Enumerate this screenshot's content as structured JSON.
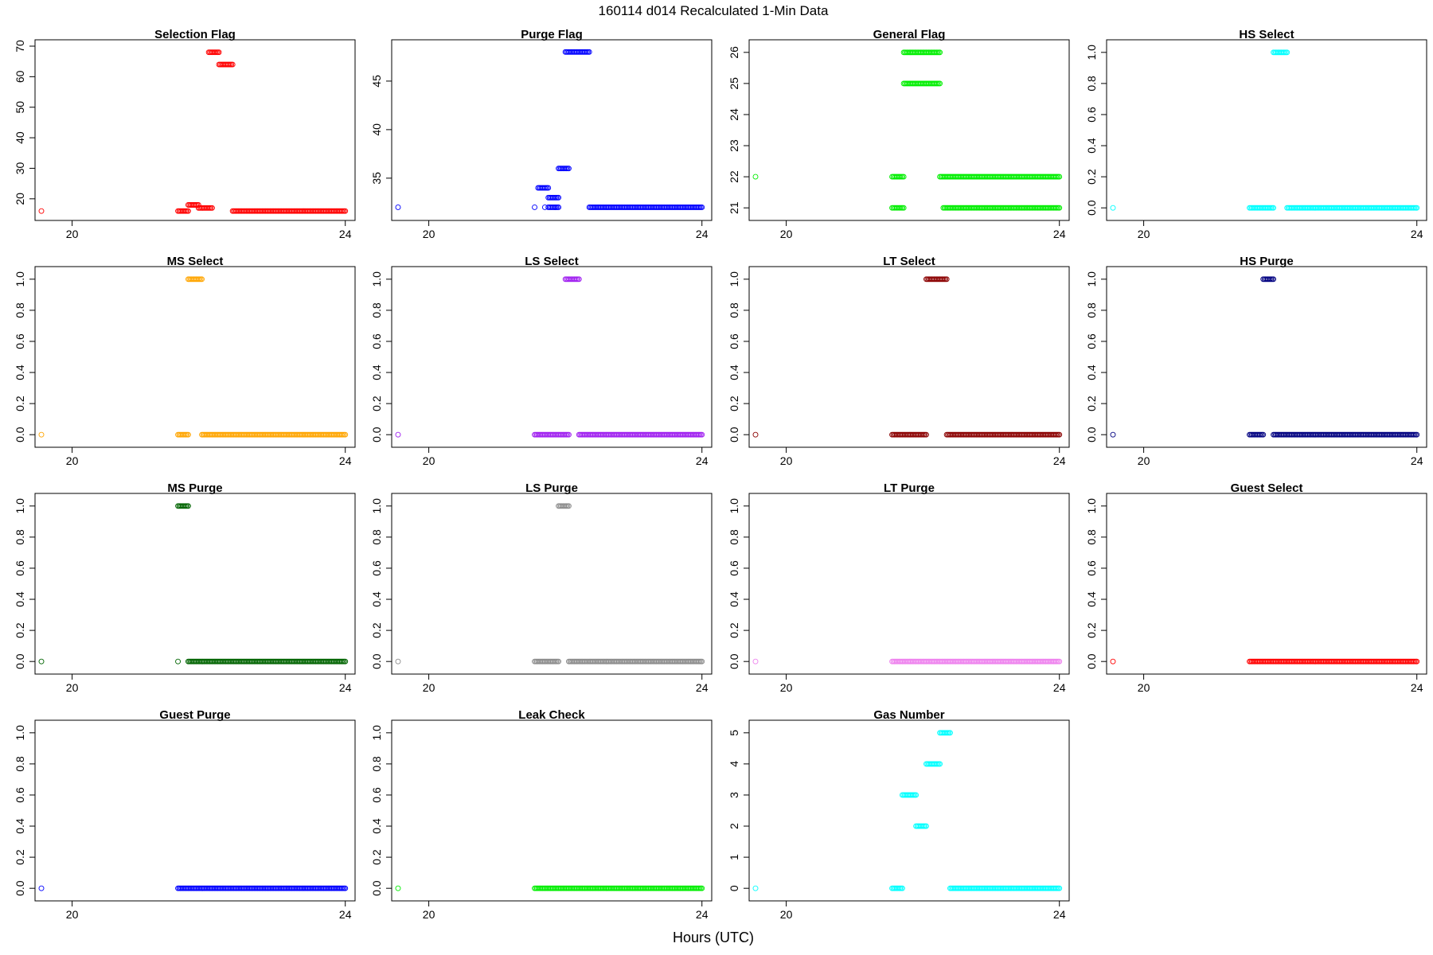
{
  "figure": {
    "title": "160114   d014   Recalculated 1-Min Data",
    "xlabel": "Hours (UTC)"
  },
  "chart_data": [
    {
      "type": "scatter",
      "title": "Selection Flag",
      "color": "#ff0000",
      "xlim": [
        19.55,
        24.05
      ],
      "ylim": [
        15,
        70
      ],
      "yticks": [
        20,
        30,
        40,
        50,
        60,
        70
      ],
      "ytick_labels": [
        "20",
        "30",
        "40",
        "50",
        "60",
        "70"
      ],
      "xticks": [
        20,
        24
      ],
      "xtick_labels": [
        "20",
        "24"
      ],
      "segments": [
        {
          "x": [
            19.55,
            19.55
          ],
          "y": 16
        },
        {
          "x": [
            21.55,
            21.7
          ],
          "y": 16
        },
        {
          "x": [
            21.7,
            21.85
          ],
          "y": 18
        },
        {
          "x": [
            21.85,
            22.05
          ],
          "y": 17
        },
        {
          "x": [
            22.0,
            22.15
          ],
          "y": 68
        },
        {
          "x": [
            22.15,
            22.35
          ],
          "y": 64
        },
        {
          "x": [
            22.35,
            24.0
          ],
          "y": 16
        }
      ]
    },
    {
      "type": "scatter",
      "title": "Purge Flag",
      "color": "#0000ff",
      "xlim": [
        19.55,
        24.05
      ],
      "ylim": [
        31.3,
        48.6
      ],
      "yticks": [
        35,
        40,
        45
      ],
      "ytick_labels": [
        "35",
        "40",
        "45"
      ],
      "xticks": [
        20,
        24
      ],
      "xtick_labels": [
        "20",
        "24"
      ],
      "segments": [
        {
          "x": [
            19.55,
            19.55
          ],
          "y": 32
        },
        {
          "x": [
            21.55,
            21.55
          ],
          "y": 32
        },
        {
          "x": [
            21.6,
            21.75
          ],
          "y": 34
        },
        {
          "x": [
            21.7,
            21.7
          ],
          "y": 32
        },
        {
          "x": [
            21.75,
            21.85
          ],
          "y": 32
        },
        {
          "x": [
            21.75,
            21.9
          ],
          "y": 33
        },
        {
          "x": [
            21.85,
            21.9
          ],
          "y": 32
        },
        {
          "x": [
            21.9,
            22.05
          ],
          "y": 36
        },
        {
          "x": [
            22.0,
            22.35
          ],
          "y": 48
        },
        {
          "x": [
            22.35,
            24.0
          ],
          "y": 32
        }
      ]
    },
    {
      "type": "scatter",
      "title": "General Flag",
      "color": "#00ee00",
      "xlim": [
        19.55,
        24.05
      ],
      "ylim": [
        20.8,
        26.2
      ],
      "yticks": [
        21,
        22,
        23,
        24,
        25,
        26
      ],
      "ytick_labels": [
        "21",
        "22",
        "23",
        "24",
        "25",
        "26"
      ],
      "xticks": [
        20,
        24
      ],
      "xtick_labels": [
        "20",
        "24"
      ],
      "segments": [
        {
          "x": [
            19.55,
            19.55
          ],
          "y": 22
        },
        {
          "x": [
            21.55,
            21.72
          ],
          "y": 21
        },
        {
          "x": [
            21.55,
            21.72
          ],
          "y": 22
        },
        {
          "x": [
            21.72,
            22.25
          ],
          "y": 26
        },
        {
          "x": [
            21.72,
            22.25
          ],
          "y": 25
        },
        {
          "x": [
            22.25,
            24.0
          ],
          "y": 22
        },
        {
          "x": [
            22.3,
            24.0
          ],
          "y": 21
        }
      ]
    },
    {
      "type": "scatter",
      "title": "HS Select",
      "color": "#00ffff",
      "xlim": [
        19.55,
        24.05
      ],
      "ylim": [
        -0.04,
        1.04
      ],
      "yticks": [
        0,
        0.2,
        0.4,
        0.6,
        0.8,
        1
      ],
      "ytick_labels": [
        "0.0",
        "0.2",
        "0.4",
        "0.6",
        "0.8",
        "1.0"
      ],
      "xticks": [
        20,
        24
      ],
      "xtick_labels": [
        "20",
        "24"
      ],
      "segments": [
        {
          "x": [
            19.55,
            19.55
          ],
          "y": 0
        },
        {
          "x": [
            21.55,
            21.9
          ],
          "y": 0
        },
        {
          "x": [
            21.9,
            22.1
          ],
          "y": 1
        },
        {
          "x": [
            22.1,
            24.0
          ],
          "y": 0
        }
      ]
    },
    {
      "type": "scatter",
      "title": "MS Select",
      "color": "#ffa500",
      "xlim": [
        19.55,
        24.05
      ],
      "ylim": [
        -0.04,
        1.04
      ],
      "yticks": [
        0,
        0.2,
        0.4,
        0.6,
        0.8,
        1
      ],
      "ytick_labels": [
        "0.0",
        "0.2",
        "0.4",
        "0.6",
        "0.8",
        "1.0"
      ],
      "xticks": [
        20,
        24
      ],
      "xtick_labels": [
        "20",
        "24"
      ],
      "segments": [
        {
          "x": [
            19.55,
            19.55
          ],
          "y": 0
        },
        {
          "x": [
            21.55,
            21.7
          ],
          "y": 0
        },
        {
          "x": [
            21.7,
            21.9
          ],
          "y": 1
        },
        {
          "x": [
            21.9,
            24.0
          ],
          "y": 0
        }
      ]
    },
    {
      "type": "scatter",
      "title": "LS Select",
      "color": "#a020f0",
      "xlim": [
        19.55,
        24.05
      ],
      "ylim": [
        -0.04,
        1.04
      ],
      "yticks": [
        0,
        0.2,
        0.4,
        0.6,
        0.8,
        1
      ],
      "ytick_labels": [
        "0.0",
        "0.2",
        "0.4",
        "0.6",
        "0.8",
        "1.0"
      ],
      "xticks": [
        20,
        24
      ],
      "xtick_labels": [
        "20",
        "24"
      ],
      "segments": [
        {
          "x": [
            19.55,
            19.55
          ],
          "y": 0
        },
        {
          "x": [
            21.55,
            22.05
          ],
          "y": 0
        },
        {
          "x": [
            22.0,
            22.2
          ],
          "y": 1
        },
        {
          "x": [
            22.2,
            24.0
          ],
          "y": 0
        }
      ]
    },
    {
      "type": "scatter",
      "title": "LT Select",
      "color": "#8b0000",
      "xlim": [
        19.55,
        24.05
      ],
      "ylim": [
        -0.04,
        1.04
      ],
      "yticks": [
        0,
        0.2,
        0.4,
        0.6,
        0.8,
        1
      ],
      "ytick_labels": [
        "0.0",
        "0.2",
        "0.4",
        "0.6",
        "0.8",
        "1.0"
      ],
      "xticks": [
        20,
        24
      ],
      "xtick_labels": [
        "20",
        "24"
      ],
      "segments": [
        {
          "x": [
            19.55,
            19.55
          ],
          "y": 0
        },
        {
          "x": [
            21.55,
            22.05
          ],
          "y": 0
        },
        {
          "x": [
            22.05,
            22.35
          ],
          "y": 1
        },
        {
          "x": [
            22.35,
            24.0
          ],
          "y": 0
        }
      ]
    },
    {
      "type": "scatter",
      "title": "HS Purge",
      "color": "#000080",
      "xlim": [
        19.55,
        24.05
      ],
      "ylim": [
        -0.04,
        1.04
      ],
      "yticks": [
        0,
        0.2,
        0.4,
        0.6,
        0.8,
        1
      ],
      "ytick_labels": [
        "0.0",
        "0.2",
        "0.4",
        "0.6",
        "0.8",
        "1.0"
      ],
      "xticks": [
        20,
        24
      ],
      "xtick_labels": [
        "20",
        "24"
      ],
      "segments": [
        {
          "x": [
            19.55,
            19.55
          ],
          "y": 0
        },
        {
          "x": [
            21.55,
            21.75
          ],
          "y": 0
        },
        {
          "x": [
            21.75,
            21.9
          ],
          "y": 1
        },
        {
          "x": [
            21.9,
            24.0
          ],
          "y": 0
        }
      ]
    },
    {
      "type": "scatter",
      "title": "MS Purge",
      "color": "#006400",
      "xlim": [
        19.55,
        24.05
      ],
      "ylim": [
        -0.04,
        1.04
      ],
      "yticks": [
        0,
        0.2,
        0.4,
        0.6,
        0.8,
        1
      ],
      "ytick_labels": [
        "0.0",
        "0.2",
        "0.4",
        "0.6",
        "0.8",
        "1.0"
      ],
      "xticks": [
        20,
        24
      ],
      "xtick_labels": [
        "20",
        "24"
      ],
      "segments": [
        {
          "x": [
            19.55,
            19.55
          ],
          "y": 0
        },
        {
          "x": [
            21.55,
            21.55
          ],
          "y": 0
        },
        {
          "x": [
            21.55,
            21.7
          ],
          "y": 1
        },
        {
          "x": [
            21.7,
            24.0
          ],
          "y": 0
        }
      ]
    },
    {
      "type": "scatter",
      "title": "LS Purge",
      "color": "#8c8c8c",
      "xlim": [
        19.55,
        24.05
      ],
      "ylim": [
        -0.04,
        1.04
      ],
      "yticks": [
        0,
        0.2,
        0.4,
        0.6,
        0.8,
        1
      ],
      "ytick_labels": [
        "0.0",
        "0.2",
        "0.4",
        "0.6",
        "0.8",
        "1.0"
      ],
      "xticks": [
        20,
        24
      ],
      "xtick_labels": [
        "20",
        "24"
      ],
      "segments": [
        {
          "x": [
            19.55,
            19.55
          ],
          "y": 0
        },
        {
          "x": [
            21.55,
            21.9
          ],
          "y": 0
        },
        {
          "x": [
            21.9,
            22.05
          ],
          "y": 1
        },
        {
          "x": [
            22.05,
            24.0
          ],
          "y": 0
        }
      ]
    },
    {
      "type": "scatter",
      "title": "LT Purge",
      "color": "#ee82ee",
      "xlim": [
        19.55,
        24.05
      ],
      "ylim": [
        -0.04,
        1.04
      ],
      "yticks": [
        0,
        0.2,
        0.4,
        0.6,
        0.8,
        1
      ],
      "ytick_labels": [
        "0.0",
        "0.2",
        "0.4",
        "0.6",
        "0.8",
        "1.0"
      ],
      "xticks": [
        20,
        24
      ],
      "xtick_labels": [
        "20",
        "24"
      ],
      "segments": [
        {
          "x": [
            19.55,
            19.55
          ],
          "y": 0
        },
        {
          "x": [
            21.55,
            24.0
          ],
          "y": 0
        }
      ]
    },
    {
      "type": "scatter",
      "title": "Guest Select",
      "color": "#ff0000",
      "xlim": [
        19.55,
        24.05
      ],
      "ylim": [
        -0.04,
        1.04
      ],
      "yticks": [
        0,
        0.2,
        0.4,
        0.6,
        0.8,
        1
      ],
      "ytick_labels": [
        "0.0",
        "0.2",
        "0.4",
        "0.6",
        "0.8",
        "1.0"
      ],
      "xticks": [
        20,
        24
      ],
      "xtick_labels": [
        "20",
        "24"
      ],
      "segments": [
        {
          "x": [
            19.55,
            19.55
          ],
          "y": 0
        },
        {
          "x": [
            21.55,
            24.0
          ],
          "y": 0
        }
      ]
    },
    {
      "type": "scatter",
      "title": "Guest Purge",
      "color": "#0000ff",
      "xlim": [
        19.55,
        24.05
      ],
      "ylim": [
        -0.04,
        1.04
      ],
      "yticks": [
        0,
        0.2,
        0.4,
        0.6,
        0.8,
        1
      ],
      "ytick_labels": [
        "0.0",
        "0.2",
        "0.4",
        "0.6",
        "0.8",
        "1.0"
      ],
      "xticks": [
        20,
        24
      ],
      "xtick_labels": [
        "20",
        "24"
      ],
      "segments": [
        {
          "x": [
            19.55,
            19.55
          ],
          "y": 0
        },
        {
          "x": [
            21.55,
            24.0
          ],
          "y": 0
        }
      ]
    },
    {
      "type": "scatter",
      "title": "Leak Check",
      "color": "#00ee00",
      "xlim": [
        19.55,
        24.05
      ],
      "ylim": [
        -0.04,
        1.04
      ],
      "yticks": [
        0,
        0.2,
        0.4,
        0.6,
        0.8,
        1
      ],
      "ytick_labels": [
        "0.0",
        "0.2",
        "0.4",
        "0.6",
        "0.8",
        "1.0"
      ],
      "xticks": [
        20,
        24
      ],
      "xtick_labels": [
        "20",
        "24"
      ],
      "segments": [
        {
          "x": [
            19.55,
            19.55
          ],
          "y": 0
        },
        {
          "x": [
            21.55,
            24.0
          ],
          "y": 0
        }
      ]
    },
    {
      "type": "scatter",
      "title": "Gas Number",
      "color": "#00ffff",
      "xlim": [
        19.55,
        24.05
      ],
      "ylim": [
        -0.2,
        5.2
      ],
      "yticks": [
        0,
        1,
        2,
        3,
        4,
        5
      ],
      "ytick_labels": [
        "0",
        "1",
        "2",
        "3",
        "4",
        "5"
      ],
      "xticks": [
        20,
        24
      ],
      "xtick_labels": [
        "20",
        "24"
      ],
      "segments": [
        {
          "x": [
            19.55,
            19.55
          ],
          "y": 0
        },
        {
          "x": [
            21.55,
            21.7
          ],
          "y": 0
        },
        {
          "x": [
            21.7,
            21.9
          ],
          "y": 3
        },
        {
          "x": [
            21.9,
            22.05
          ],
          "y": 2
        },
        {
          "x": [
            22.05,
            22.25
          ],
          "y": 4
        },
        {
          "x": [
            22.25,
            22.4
          ],
          "y": 5
        },
        {
          "x": [
            22.4,
            24.0
          ],
          "y": 0
        }
      ]
    }
  ]
}
